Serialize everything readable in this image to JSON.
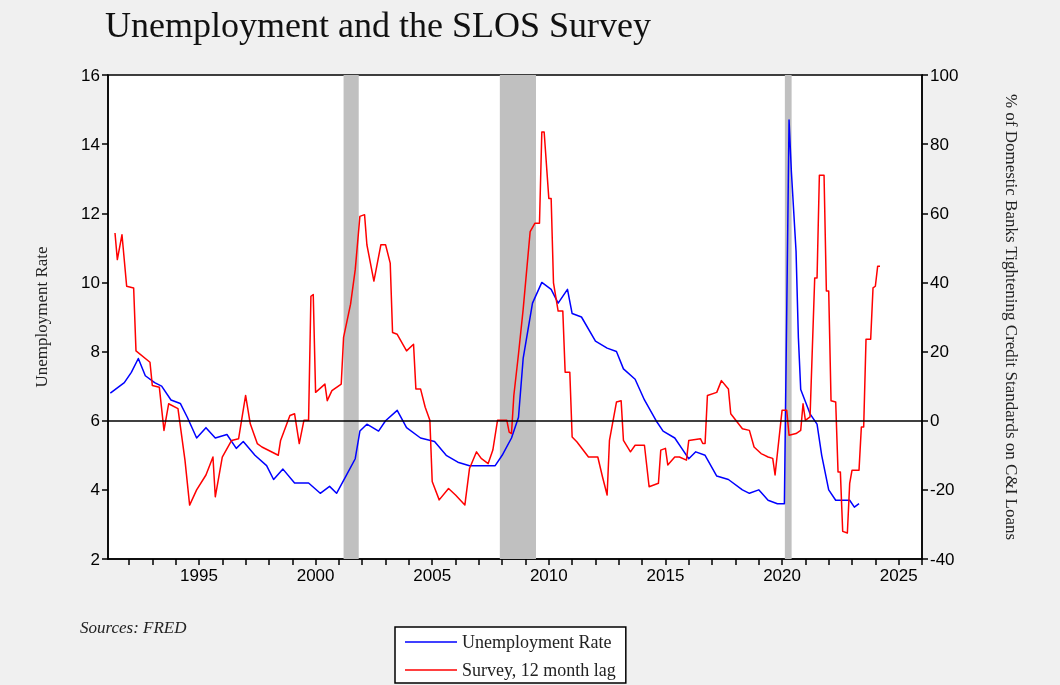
{
  "chart_data": {
    "type": "line",
    "title": "Unemployment and the SLOS Survey",
    "ylabel": "Unemployment Rate",
    "y2label": "% of Domestic Banks Tightening Credit Standards on C&I Loans",
    "annotations": [
      "Sources: FRED"
    ],
    "xlim": [
      1991.1,
      2026
    ],
    "xticks": [
      {
        "value": 1992,
        "label": null
      },
      {
        "value": 1993,
        "label": null
      },
      {
        "value": 1994,
        "label": null
      },
      1995,
      {
        "value": 1996,
        "label": null
      },
      {
        "value": 1997,
        "label": null
      },
      {
        "value": 1998,
        "label": null
      },
      {
        "value": 1999,
        "label": null
      },
      2000,
      {
        "value": 2001,
        "label": null
      },
      {
        "value": 2002,
        "label": null
      },
      {
        "value": 2003,
        "label": null
      },
      {
        "value": 2004,
        "label": null
      },
      2005,
      {
        "value": 2006,
        "label": null
      },
      {
        "value": 2007,
        "label": null
      },
      {
        "value": 2008,
        "label": null
      },
      {
        "value": 2009,
        "label": null
      },
      2010,
      {
        "value": 2011,
        "label": null
      },
      {
        "value": 2012,
        "label": null
      },
      {
        "value": 2013,
        "label": null
      },
      {
        "value": 2014,
        "label": null
      },
      2015,
      {
        "value": 2016,
        "label": null
      },
      {
        "value": 2017,
        "label": null
      },
      {
        "value": 2018,
        "label": null
      },
      {
        "value": 2019,
        "label": null
      },
      2020,
      {
        "value": 2021,
        "label": null
      },
      {
        "value": 2022,
        "label": null
      },
      {
        "value": 2023,
        "label": null
      },
      {
        "value": 2024,
        "label": null
      },
      2025,
      {
        "value": 2026,
        "label": null
      }
    ],
    "ylim": [
      2,
      16
    ],
    "yticks": [
      2,
      4,
      6,
      8,
      10,
      12,
      14,
      16
    ],
    "y2lim": [
      -40,
      100
    ],
    "y2ticks": [
      -40,
      -20,
      0,
      20,
      40,
      60,
      80,
      100
    ],
    "grid": false,
    "legend": "bottom",
    "marker": "none",
    "line_style": "solid",
    "ref_lines": [
      {
        "axis": "y2",
        "value": 0,
        "color": "#000000"
      }
    ],
    "bands": [
      {
        "axis": "x",
        "from": 2001.2,
        "to": 2001.85,
        "color": "#c0c0c0"
      },
      {
        "axis": "x",
        "from": 2007.9,
        "to": 2009.45,
        "color": "#c0c0c0"
      },
      {
        "axis": "x",
        "from": 2020.12,
        "to": 2020.41,
        "color": "#c0c0c0"
      }
    ],
    "series": [
      {
        "name": "Unemployment Rate",
        "color": "#0000ff",
        "x": [
          1991.2,
          1991.4,
          1991.8,
          1992.1,
          1992.4,
          1992.7,
          1993.1,
          1993.4,
          1993.8,
          1994.2,
          1994.5,
          1994.9,
          1995.3,
          1995.7,
          1996.2,
          1996.6,
          1996.9,
          1997.4,
          1997.9,
          1998.2,
          1998.6,
          1999.1,
          1999.7,
          2000.2,
          2000.6,
          2000.9,
          2001.3,
          2001.7,
          2001.9,
          2002.2,
          2002.7,
          2003.0,
          2003.5,
          2003.9,
          2004.5,
          2005.1,
          2005.6,
          2006.1,
          2006.6,
          2006.9,
          2007.3,
          2007.7,
          2008.0,
          2008.4,
          2008.7,
          2008.9,
          2009.3,
          2009.7,
          2010.1,
          2010.4,
          2010.8,
          2011.0,
          2011.4,
          2012.0,
          2012.5,
          2012.9,
          2013.2,
          2013.7,
          2014.1,
          2014.6,
          2014.9,
          2015.4,
          2015.7,
          2016.0,
          2016.3,
          2016.7,
          2017.2,
          2017.7,
          2018.3,
          2018.6,
          2019.0,
          2019.4,
          2019.8,
          2020.1,
          2020.3,
          2020.4,
          2020.6,
          2020.7,
          2020.8,
          2021.2,
          2021.5,
          2021.7,
          2022.0,
          2022.3,
          2022.6,
          2022.9,
          2023.1,
          2023.3
        ],
        "values": [
          6.8,
          6.9,
          7.1,
          7.4,
          7.8,
          7.3,
          7.1,
          7.0,
          6.6,
          6.5,
          6.1,
          5.5,
          5.8,
          5.5,
          5.6,
          5.2,
          5.4,
          5.0,
          4.7,
          4.3,
          4.6,
          4.2,
          4.2,
          3.9,
          4.1,
          3.9,
          4.4,
          4.9,
          5.7,
          5.9,
          5.7,
          6.0,
          6.3,
          5.8,
          5.5,
          5.4,
          5.0,
          4.8,
          4.7,
          4.7,
          4.7,
          4.7,
          5.0,
          5.5,
          6.1,
          7.8,
          9.4,
          10.0,
          9.8,
          9.4,
          9.8,
          9.1,
          9.0,
          8.3,
          8.1,
          8.0,
          7.5,
          7.2,
          6.6,
          6.0,
          5.7,
          5.5,
          5.2,
          4.9,
          5.1,
          5.0,
          4.4,
          4.3,
          4.0,
          3.9,
          4.0,
          3.7,
          3.6,
          3.6,
          14.7,
          13.2,
          10.9,
          8.4,
          6.9,
          6.2,
          5.9,
          5.0,
          4.0,
          3.7,
          3.7,
          3.7,
          3.5,
          3.6
        ]
      },
      {
        "name": "Survey, 12 month lag",
        "color": "#ff0000",
        "axis": "y2",
        "x": [
          1991.4,
          1991.5,
          1991.7,
          1991.9,
          1992.2,
          1992.3,
          1992.9,
          1993.0,
          1993.3,
          1993.5,
          1993.7,
          1994.1,
          1994.4,
          1994.6,
          1994.9,
          1995.3,
          1995.6,
          1995.7,
          1996.0,
          1996.4,
          1996.7,
          1997.0,
          1997.2,
          1997.5,
          1997.7,
          1998.4,
          1998.5,
          1998.9,
          1999.1,
          1999.3,
          1999.5,
          1999.7,
          1999.8,
          1999.9,
          2000.0,
          2000.4,
          2000.5,
          2000.7,
          2001.1,
          2001.2,
          2001.5,
          2001.7,
          2001.9,
          2002.1,
          2002.2,
          2002.5,
          2002.8,
          2003.0,
          2003.2,
          2003.3,
          2003.5,
          2003.9,
          2004.2,
          2004.3,
          2004.5,
          2004.7,
          2004.9,
          2005.0,
          2005.3,
          2005.7,
          2006.0,
          2006.4,
          2006.6,
          2006.9,
          2007.1,
          2007.4,
          2007.6,
          2007.8,
          2008.2,
          2008.3,
          2008.4,
          2008.5,
          2008.7,
          2008.9,
          2009.2,
          2009.4,
          2009.6,
          2009.7,
          2009.8,
          2010.0,
          2010.1,
          2010.2,
          2010.4,
          2010.6,
          2010.7,
          2010.9,
          2011.0,
          2011.2,
          2011.7,
          2012.1,
          2012.3,
          2012.5,
          2012.6,
          2012.9,
          2013.1,
          2013.2,
          2013.5,
          2013.7,
          2014.1,
          2014.3,
          2014.7,
          2014.8,
          2015.0,
          2015.1,
          2015.4,
          2015.6,
          2015.9,
          2016.0,
          2016.5,
          2016.6,
          2016.7,
          2016.8,
          2017.2,
          2017.4,
          2017.7,
          2017.8,
          2018.3,
          2018.6,
          2018.8,
          2019.1,
          2019.4,
          2019.6,
          2019.7,
          2020.0,
          2020.2,
          2020.3,
          2020.6,
          2020.8,
          2020.9,
          2021.0,
          2021.2,
          2021.4,
          2021.5,
          2021.6,
          2021.8,
          2021.9,
          2022.0,
          2022.1,
          2022.3,
          2022.4,
          2022.5,
          2022.6,
          2022.8,
          2022.9,
          2023.0,
          2023.3,
          2023.4,
          2023.5,
          2023.6,
          2023.8,
          2023.9,
          2024.0,
          2024.1,
          2024.2
        ],
        "values": [
          54.3,
          46.6,
          53.8,
          38.9,
          38.4,
          20.2,
          16.9,
          10.2,
          9.7,
          -2.8,
          4.9,
          3.5,
          -11.4,
          -24.4,
          -20.0,
          -15.7,
          -10.5,
          -22.0,
          -10.5,
          -5.7,
          -5.2,
          7.3,
          -0.9,
          -6.6,
          -7.6,
          -10.0,
          -5.7,
          1.5,
          2.0,
          -6.6,
          0.1,
          0.1,
          36.0,
          36.5,
          8.2,
          10.6,
          5.8,
          8.7,
          10.6,
          24.1,
          33.7,
          43.7,
          59.1,
          59.6,
          50.9,
          40.4,
          50.9,
          50.9,
          45.6,
          25.5,
          25.0,
          20.2,
          22.1,
          9.2,
          9.2,
          3.9,
          0.1,
          -17.6,
          -22.9,
          -19.6,
          -21.5,
          -24.4,
          -13.8,
          -9.0,
          -10.9,
          -12.4,
          -8.5,
          0.1,
          0.1,
          -3.3,
          -3.7,
          7.3,
          19.3,
          32.2,
          54.7,
          57.1,
          57.1,
          83.5,
          83.5,
          64.3,
          64.3,
          39.9,
          31.7,
          31.7,
          14.0,
          14.0,
          -4.7,
          -6.1,
          -10.5,
          -10.5,
          -16.2,
          -21.5,
          -5.7,
          5.4,
          5.8,
          -5.7,
          -9.0,
          -7.1,
          -7.1,
          -19.1,
          -18.1,
          -8.5,
          -8.0,
          -12.8,
          -10.5,
          -10.5,
          -11.4,
          -5.7,
          -5.2,
          -6.6,
          -6.6,
          7.3,
          8.2,
          11.6,
          9.2,
          2.0,
          -2.3,
          -2.8,
          -7.6,
          -9.5,
          -10.5,
          -10.9,
          -15.7,
          3.0,
          3.0,
          -4.2,
          -3.7,
          -2.8,
          4.9,
          0.1,
          1.1,
          41.3,
          41.3,
          71.0,
          71.0,
          37.5,
          37.5,
          5.8,
          5.4,
          -14.8,
          -14.8,
          -32.0,
          -32.5,
          -18.1,
          -14.3,
          -14.3,
          -1.8,
          -1.8,
          23.6,
          23.6,
          38.4,
          38.9,
          44.7,
          44.7
        ]
      }
    ]
  }
}
